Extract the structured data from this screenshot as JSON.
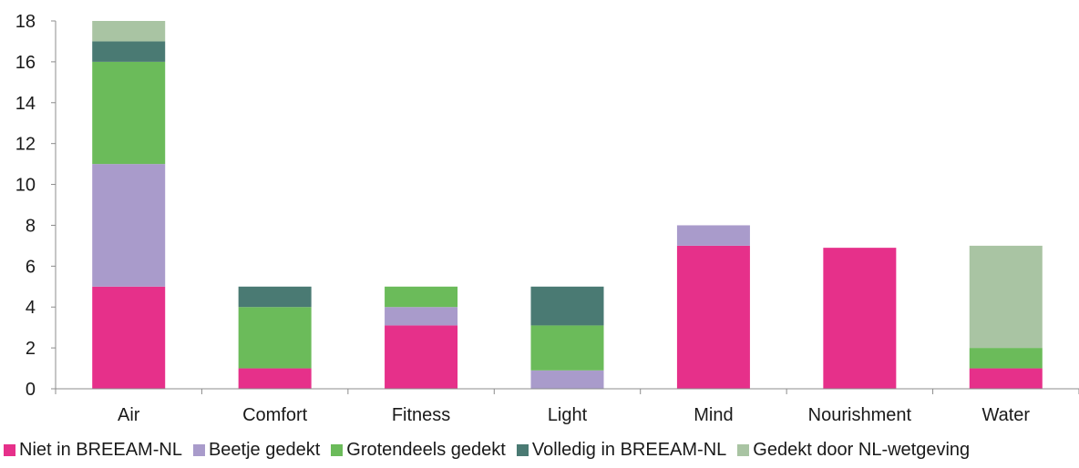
{
  "chart_data": {
    "type": "bar",
    "stacked": true,
    "categories": [
      "Air",
      "Comfort",
      "Fitness",
      "Light",
      "Mind",
      "Nourishment",
      "Water"
    ],
    "series": [
      {
        "name": "Niet in BREEAM-NL",
        "color": "#e6308a",
        "values": [
          5,
          1,
          3.1,
          0,
          7,
          6.9,
          1
        ]
      },
      {
        "name": "Beetje gedekt",
        "color": "#a99bcb",
        "values": [
          6,
          0,
          0.9,
          0.9,
          1,
          0,
          0
        ]
      },
      {
        "name": "Grotendeels gedekt",
        "color": "#6bbb5a",
        "values": [
          5,
          3,
          1,
          2.2,
          0,
          0,
          1
        ]
      },
      {
        "name": "Volledig in BREEAM-NL",
        "color": "#4a7a73",
        "values": [
          1,
          1,
          0,
          1.9,
          0,
          0,
          0
        ]
      },
      {
        "name": "Gedekt door NL-wetgeving",
        "color": "#a9c4a3",
        "values": [
          1,
          0,
          0,
          0,
          0,
          0,
          5
        ]
      }
    ],
    "ylim": [
      0,
      18
    ],
    "yticks": [
      0,
      2,
      4,
      6,
      8,
      10,
      12,
      14,
      16,
      18
    ],
    "grid": false,
    "legend_position": "bottom"
  }
}
